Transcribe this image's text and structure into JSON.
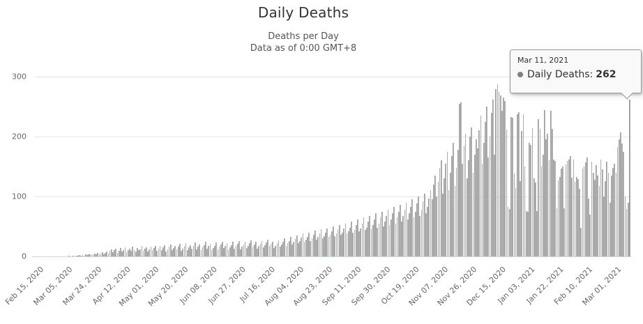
{
  "header": {
    "title": "Daily Deaths",
    "subtitle_line1": "Deaths per Day",
    "subtitle_line2": "Data as of 0:00 GMT+8"
  },
  "y_axis": {
    "tick_labels": [
      "0",
      "100",
      "200",
      "300"
    ]
  },
  "x_axis": {
    "tick_labels": [
      "Feb 15, 2020",
      "Mar 05, 2020",
      "Mar 24, 2020",
      "Apr 12, 2020",
      "May 01, 2020",
      "May 20, 2020",
      "Jun 08, 2020",
      "Jun 27, 2020",
      "Jul 16, 2020",
      "Aug 04, 2020",
      "Aug 23, 2020",
      "Sep 11, 2020",
      "Sep 30, 2020",
      "Oct 19, 2020",
      "Nov 07, 2020",
      "Nov 26, 2020",
      "Dec 15, 2020",
      "Jan 03, 2021",
      "Jan 22, 2021",
      "Feb 10, 2021",
      "Mar 01, 2021"
    ]
  },
  "tooltip": {
    "date": "Mar 11, 2021",
    "series_label": "Daily Deaths:",
    "value": "262",
    "marker_icon": "circle"
  },
  "colors": {
    "bar": "#a0a0a0",
    "grid": "#e6e6e6",
    "axis_line": "#ccd6eb",
    "axis_label": "#666666",
    "title": "#333333",
    "subtitle": "#555555",
    "tooltip_border": "#999999",
    "tooltip_background": "#f9f9f9",
    "tooltip_marker": "#7f7f7f"
  },
  "chart_data": {
    "type": "bar",
    "title": "Daily Deaths",
    "subtitle": "Deaths per Day — Data as of 0:00 GMT+8",
    "xlabel": "",
    "ylabel": "",
    "x_start_date": "Feb 15, 2020",
    "x_end_date": "Mar 11, 2021",
    "x_frequency": "daily",
    "x_tick_labels": [
      "Feb 15, 2020",
      "Mar 05, 2020",
      "Mar 24, 2020",
      "Apr 12, 2020",
      "May 01, 2020",
      "May 20, 2020",
      "Jun 08, 2020",
      "Jun 27, 2020",
      "Jul 16, 2020",
      "Aug 04, 2020",
      "Aug 23, 2020",
      "Sep 11, 2020",
      "Sep 30, 2020",
      "Oct 19, 2020",
      "Nov 07, 2020",
      "Nov 26, 2020",
      "Dec 15, 2020",
      "Jan 03, 2021",
      "Jan 22, 2021",
      "Feb 10, 2021",
      "Mar 01, 2021"
    ],
    "ylim": [
      0,
      300
    ],
    "y_ticks": [
      0,
      100,
      200,
      300
    ],
    "grid": "horizontal",
    "legend": "none",
    "series_name": "Daily Deaths",
    "highlighted_point": {
      "date": "Mar 11, 2021",
      "value": 262
    },
    "values": [
      0,
      0,
      0,
      0,
      0,
      0,
      0,
      0,
      0,
      0,
      0,
      0,
      0,
      0,
      0,
      0,
      0,
      0,
      0,
      0,
      0,
      1,
      0,
      0,
      1,
      0,
      1,
      1,
      2,
      1,
      2,
      1,
      3,
      2,
      4,
      3,
      2,
      4,
      5,
      3,
      6,
      4,
      5,
      7,
      4,
      6,
      8,
      5,
      9,
      12,
      7,
      10,
      13,
      6,
      9,
      14,
      8,
      11,
      15,
      7,
      10,
      13,
      9,
      16,
      11,
      8,
      14,
      10,
      12,
      17,
      9,
      13,
      15,
      8,
      12,
      16,
      10,
      14,
      18,
      9,
      13,
      17,
      11,
      15,
      19,
      8,
      12,
      16,
      20,
      10,
      14,
      18,
      12,
      16,
      21,
      9,
      13,
      17,
      22,
      11,
      15,
      19,
      13,
      17,
      23,
      12,
      16,
      20,
      11,
      15,
      19,
      24,
      13,
      17,
      21,
      10,
      14,
      18,
      23,
      12,
      16,
      20,
      25,
      14,
      18,
      22,
      11,
      15,
      19,
      24,
      13,
      17,
      21,
      26,
      12,
      16,
      20,
      25,
      14,
      18,
      22,
      27,
      16,
      20,
      24,
      13,
      17,
      21,
      26,
      15,
      19,
      23,
      28,
      17,
      21,
      25,
      14,
      18,
      22,
      27,
      16,
      20,
      24,
      30,
      18,
      22,
      26,
      32,
      20,
      24,
      29,
      35,
      22,
      26,
      31,
      38,
      24,
      28,
      33,
      40,
      26,
      30,
      36,
      43,
      28,
      32,
      38,
      45,
      30,
      34,
      40,
      47,
      32,
      36,
      42,
      50,
      34,
      38,
      44,
      52,
      36,
      40,
      46,
      55,
      38,
      42,
      48,
      58,
      40,
      44,
      52,
      62,
      42,
      46,
      55,
      65,
      44,
      48,
      58,
      68,
      46,
      52,
      62,
      72,
      48,
      55,
      65,
      75,
      50,
      58,
      68,
      78,
      52,
      62,
      72,
      82,
      55,
      65,
      75,
      86,
      58,
      68,
      78,
      90,
      62,
      72,
      82,
      95,
      65,
      75,
      88,
      100,
      68,
      78,
      92,
      105,
      72,
      82,
      96,
      110,
      95,
      120,
      135,
      100,
      125,
      148,
      160,
      105,
      130,
      155,
      175,
      110,
      140,
      168,
      190,
      118,
      148,
      178,
      255,
      257,
      155,
      185,
      205,
      130,
      160,
      200,
      215,
      140,
      170,
      195,
      180,
      210,
      235,
      155,
      190,
      225,
      250,
      165,
      200,
      240,
      262,
      170,
      279,
      287,
      275,
      269,
      243,
      265,
      259,
      212,
      82,
      79,
      233,
      231,
      138,
      114,
      237,
      241,
      126,
      209,
      237,
      150,
      76,
      75,
      190,
      186,
      214,
      130,
      123,
      76,
      229,
      213,
      150,
      170,
      244,
      195,
      205,
      160,
      243,
      213,
      162,
      159,
      80,
      127,
      133,
      147,
      150,
      80,
      153,
      159,
      162,
      168,
      131,
      162,
      125,
      133,
      129,
      113,
      48,
      147,
      150,
      157,
      165,
      96,
      70,
      158,
      140,
      128,
      152,
      135,
      118,
      162,
      145,
      100,
      126,
      158,
      140,
      90,
      135,
      148,
      155,
      140,
      182,
      195,
      207,
      188,
      174,
      100,
      79,
      90,
      262
    ]
  }
}
